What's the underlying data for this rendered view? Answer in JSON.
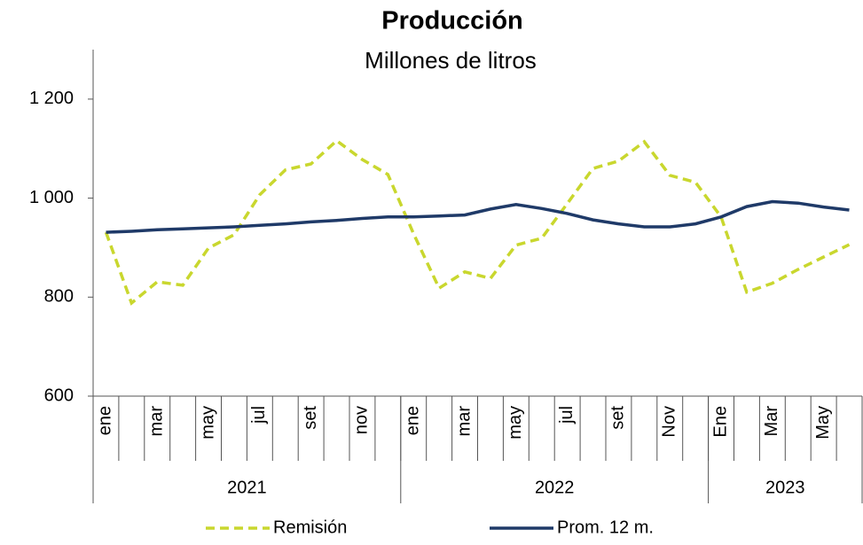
{
  "chart_data": {
    "type": "line",
    "title": "Producción",
    "subtitle": "Millones de litros",
    "categories": [
      "ene",
      null,
      "mar",
      null,
      "may",
      null,
      "jul",
      null,
      "set",
      null,
      "nov",
      null,
      "ene",
      null,
      "mar",
      null,
      "may",
      null,
      "jul",
      null,
      "set",
      null,
      "Nov",
      null,
      "Ene",
      null,
      "Mar",
      null,
      "May",
      null
    ],
    "x_groups": [
      {
        "label": "2021",
        "size": 12
      },
      {
        "label": "2022",
        "size": 12
      },
      {
        "label": "2023",
        "size": 6
      }
    ],
    "series": [
      {
        "name": "Remisión",
        "color": "#c9d72e",
        "dashed": true,
        "values": [
          931,
          788,
          831,
          824,
          899,
          926,
          1007,
          1057,
          1069,
          1116,
          1078,
          1048,
          928,
          818,
          851,
          838,
          905,
          919,
          989,
          1060,
          1075,
          1114,
          1046,
          1032,
          962,
          810,
          828,
          856,
          881,
          906
        ]
      },
      {
        "name": "Prom. 12 m.",
        "color": "#1f3a68",
        "dashed": false,
        "values": [
          931,
          933,
          936,
          938,
          940,
          942,
          945,
          948,
          952,
          955,
          959,
          962,
          962,
          964,
          966,
          978,
          987,
          979,
          969,
          956,
          948,
          942,
          942,
          948,
          962,
          983,
          993,
          990,
          982,
          976
        ]
      }
    ],
    "ylim": [
      600,
      1300
    ],
    "yticks": [
      600,
      800,
      {
        "value": 1000,
        "label": "1 000"
      },
      {
        "value": 1200,
        "label": "1 200"
      }
    ],
    "grid": false,
    "legend": "bottom"
  }
}
